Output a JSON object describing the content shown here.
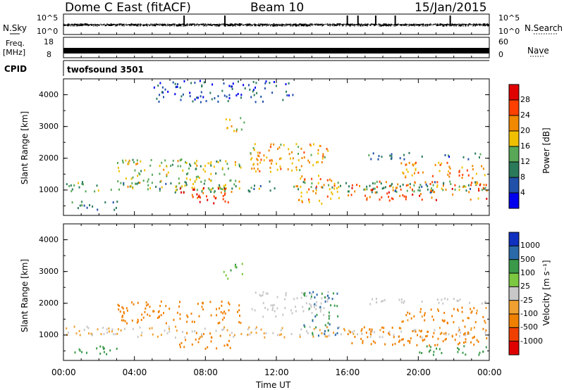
{
  "header": {
    "station": "Dome C East (fitACF)",
    "beam": "Beam 10",
    "date": "15/Jan/2015"
  },
  "strips": {
    "nsky": {
      "label": "N.Sky",
      "tick_top": "10^5",
      "tick_bottom": "10^0"
    },
    "nsearch": {
      "label": "N.Search",
      "tick_top": "10^5",
      "tick_bottom": "10^0"
    },
    "freq": {
      "label_line1": "Freq.",
      "label_line2": "[MHz]",
      "tick_top": "18",
      "tick_bottom": "8"
    },
    "nave": {
      "label": "Nave",
      "tick_top": "60",
      "tick_bottom": "0"
    },
    "cpid": {
      "label": "CPID",
      "value": "twofsound 3501"
    }
  },
  "chart_data": [
    {
      "type": "heatmap",
      "quantity": "power",
      "ylabel": "Slant Range [km]",
      "yticks": [
        "1000",
        "2000",
        "3000",
        "4000"
      ],
      "ylim": [
        200,
        4500
      ],
      "colorbar_label": "Power [dB]",
      "colorbar_ticks": [
        "4",
        "8",
        "12",
        "16",
        "20",
        "24",
        "28"
      ],
      "colorbar_range": [
        0,
        32
      ],
      "palette": [
        "#0000ee",
        "#2050a8",
        "#2a7a5a",
        "#58a858",
        "#f0c000",
        "#f08800",
        "#ff4000",
        "#e00000"
      ],
      "colormap_stops": [
        0,
        4,
        8,
        12,
        16,
        20,
        24,
        28
      ],
      "echo_regions": [
        {
          "t0": 0.0,
          "t1": 24.0,
          "r0": 950,
          "r1": 1300,
          "value": 12
        },
        {
          "t0": 0.0,
          "t1": 3.0,
          "r0": 400,
          "r1": 700,
          "value": 10
        },
        {
          "t0": 3.0,
          "t1": 10.0,
          "r0": 1000,
          "r1": 2000,
          "value": 16
        },
        {
          "t0": 6.5,
          "t1": 9.5,
          "r0": 600,
          "r1": 1100,
          "value": 26
        },
        {
          "t0": 9.0,
          "t1": 10.2,
          "r0": 2800,
          "r1": 3300,
          "value": 18
        },
        {
          "t0": 10.5,
          "t1": 15.0,
          "r0": 1600,
          "r1": 2500,
          "value": 20
        },
        {
          "t0": 13.0,
          "t1": 15.5,
          "r0": 600,
          "r1": 1500,
          "value": 22
        },
        {
          "t0": 16.0,
          "t1": 24.0,
          "r0": 700,
          "r1": 1300,
          "value": 24
        },
        {
          "t0": 19.0,
          "t1": 24.0,
          "r0": 1400,
          "r1": 1900,
          "value": 22
        },
        {
          "t0": 17.0,
          "t1": 24.0,
          "r0": 2000,
          "r1": 2200,
          "value": 8
        },
        {
          "t0": 5.0,
          "t1": 13.0,
          "r0": 3800,
          "r1": 4500,
          "value": 6
        }
      ]
    },
    {
      "type": "heatmap",
      "quantity": "velocity",
      "ylabel": "Slant Range [km]",
      "yticks": [
        "1000",
        "2000",
        "3000",
        "4000"
      ],
      "ylim": [
        200,
        4500
      ],
      "xlabel": "Time UT",
      "xticks": [
        "00:00",
        "04:00",
        "08:00",
        "12:00",
        "16:00",
        "20:00",
        "00:00"
      ],
      "xlim": [
        0,
        24
      ],
      "colorbar_label": "Velocity [m s⁻¹]",
      "colorbar_ticks": [
        "1000",
        "500",
        "100",
        "25",
        "-25",
        "-100",
        "-500",
        "-1000"
      ],
      "palette": [
        "#e00000",
        "#f04000",
        "#f08000",
        "#f0a030",
        "#c8c8c8",
        "#7cc840",
        "#3a9a4a",
        "#2a6aa8",
        "#1030c0"
      ],
      "echo_regions": [
        {
          "t0": 0.0,
          "t1": 24.0,
          "r0": 950,
          "r1": 1300,
          "value": -25
        },
        {
          "t0": 0.0,
          "t1": 3.0,
          "r0": 400,
          "r1": 700,
          "value": 300
        },
        {
          "t0": 3.0,
          "t1": 10.0,
          "r0": 1400,
          "r1": 2100,
          "value": -300
        },
        {
          "t0": 6.5,
          "t1": 9.5,
          "r0": 600,
          "r1": 1100,
          "value": -300
        },
        {
          "t0": 9.0,
          "t1": 10.2,
          "r0": 2800,
          "r1": 3300,
          "value": 100
        },
        {
          "t0": 10.5,
          "t1": 15.0,
          "r0": 1600,
          "r1": 2400,
          "value": 0
        },
        {
          "t0": 13.5,
          "t1": 15.5,
          "r0": 1000,
          "r1": 2400,
          "value": 500
        },
        {
          "t0": 16.0,
          "t1": 24.0,
          "r0": 700,
          "r1": 1300,
          "value": -300
        },
        {
          "t0": 20.0,
          "t1": 24.0,
          "r0": 400,
          "r1": 700,
          "value": 300
        },
        {
          "t0": 19.0,
          "t1": 24.0,
          "r0": 1400,
          "r1": 1900,
          "value": -150
        },
        {
          "t0": 17.0,
          "t1": 24.0,
          "r0": 2000,
          "r1": 2200,
          "value": 0
        }
      ]
    }
  ]
}
